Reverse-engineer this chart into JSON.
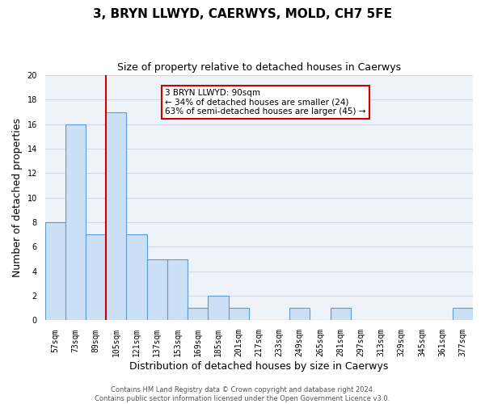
{
  "title1": "3, BRYN LLWYD, CAERWYS, MOLD, CH7 5FE",
  "title2": "Size of property relative to detached houses in Caerwys",
  "xlabel": "Distribution of detached houses by size in Caerwys",
  "ylabel": "Number of detached properties",
  "bar_labels": [
    "57sqm",
    "73sqm",
    "89sqm",
    "105sqm",
    "121sqm",
    "137sqm",
    "153sqm",
    "169sqm",
    "185sqm",
    "201sqm",
    "217sqm",
    "233sqm",
    "249sqm",
    "265sqm",
    "281sqm",
    "297sqm",
    "313sqm",
    "329sqm",
    "345sqm",
    "361sqm",
    "377sqm"
  ],
  "bar_values": [
    8,
    16,
    7,
    17,
    7,
    5,
    5,
    1,
    2,
    1,
    0,
    0,
    1,
    0,
    1,
    0,
    0,
    0,
    0,
    0,
    1
  ],
  "bar_color": "#cce0f5",
  "bar_edge_color": "#5b9bd5",
  "annotation_box_text": "3 BRYN LLWYD: 90sqm\n← 34% of detached houses are smaller (24)\n63% of semi-detached houses are larger (45) →",
  "annotation_box_color": "#ffffff",
  "annotation_box_edge_color": "#cc0000",
  "annotation_line_color": "#cc0000",
  "ylim": [
    0,
    20
  ],
  "yticks": [
    0,
    2,
    4,
    6,
    8,
    10,
    12,
    14,
    16,
    18,
    20
  ],
  "footer1": "Contains HM Land Registry data © Crown copyright and database right 2024.",
  "footer2": "Contains public sector information licensed under the Open Government Licence v3.0.",
  "grid_color": "#d0d8e8",
  "background_color": "#eef3fa",
  "title1_fontsize": 11,
  "title2_fontsize": 9,
  "ylabel_fontsize": 9,
  "xlabel_fontsize": 9,
  "tick_fontsize": 7,
  "footer_fontsize": 6
}
